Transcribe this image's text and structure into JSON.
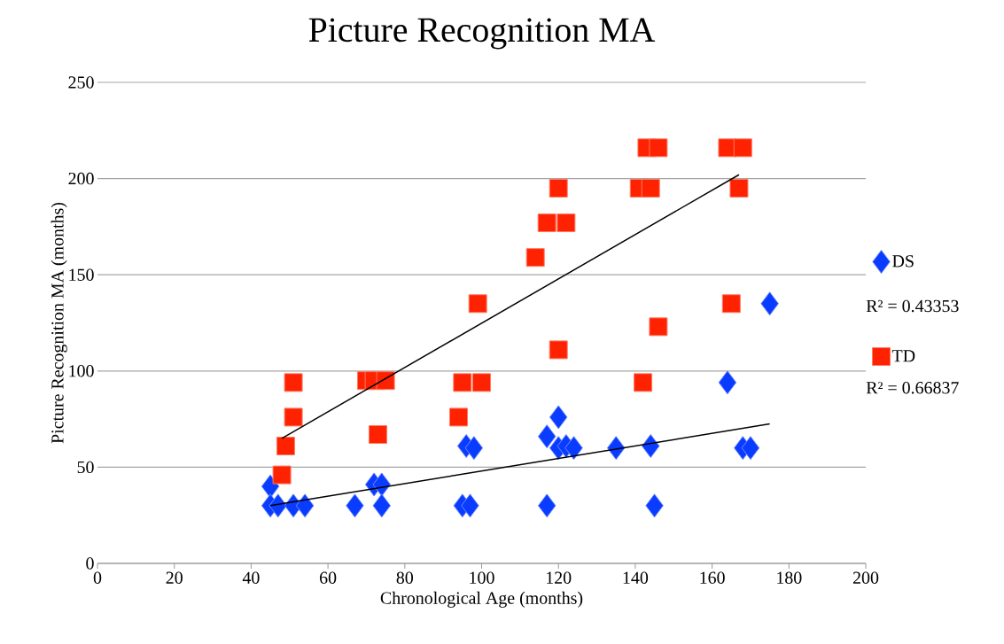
{
  "chart_data": {
    "type": "scatter",
    "title": "Picture Recognition MA",
    "xlabel": "Chronological Age (months)",
    "ylabel": "Picture Recognition MA (months)",
    "xlim": [
      0,
      200
    ],
    "xticks": [
      0,
      20,
      40,
      60,
      80,
      100,
      120,
      140,
      160,
      180,
      200
    ],
    "ylim": [
      0,
      250
    ],
    "yticks": [
      0,
      50,
      100,
      150,
      200,
      250
    ],
    "grid": "y",
    "legend": "right",
    "annotations": [
      "R² = 0.43353",
      "R² = 0.66837"
    ],
    "series": [
      {
        "name": "DS",
        "marker": "diamond",
        "color": "#0a3cff",
        "x": [
          45,
          45,
          47,
          51,
          54,
          67,
          72,
          74,
          74,
          95,
          97,
          96,
          98,
          117,
          120,
          120,
          122,
          124,
          117,
          135,
          144,
          145,
          164,
          168,
          170,
          175
        ],
        "values": [
          40,
          30,
          30,
          30,
          30,
          30,
          41,
          41,
          30,
          30,
          30,
          61,
          60,
          66,
          76,
          60,
          61,
          60,
          30,
          60,
          61,
          30,
          94,
          60,
          60,
          135
        ]
      },
      {
        "name": "TD",
        "marker": "square",
        "color": "#ff2200",
        "x": [
          120,
          117,
          122,
          114,
          99,
          120,
          51,
          70,
          72,
          75,
          95,
          100,
          51,
          94,
          73,
          49,
          48,
          143,
          146,
          164,
          168,
          141,
          144,
          167,
          165,
          146,
          142
        ],
        "values": [
          195,
          177,
          177,
          159,
          135,
          111,
          94,
          95,
          95,
          95,
          94,
          94,
          76,
          76,
          67,
          61,
          46,
          216,
          216,
          216,
          216,
          195,
          195,
          195,
          135,
          123,
          94
        ]
      },
      {
        "type": "line",
        "marker": "none",
        "color": "#000000",
        "x": [
          45,
          175
        ],
        "values": [
          30,
          72.5
        ]
      },
      {
        "type": "line",
        "marker": "none",
        "color": "#000000",
        "x": [
          48,
          167
        ],
        "values": [
          65,
          202
        ]
      }
    ]
  }
}
